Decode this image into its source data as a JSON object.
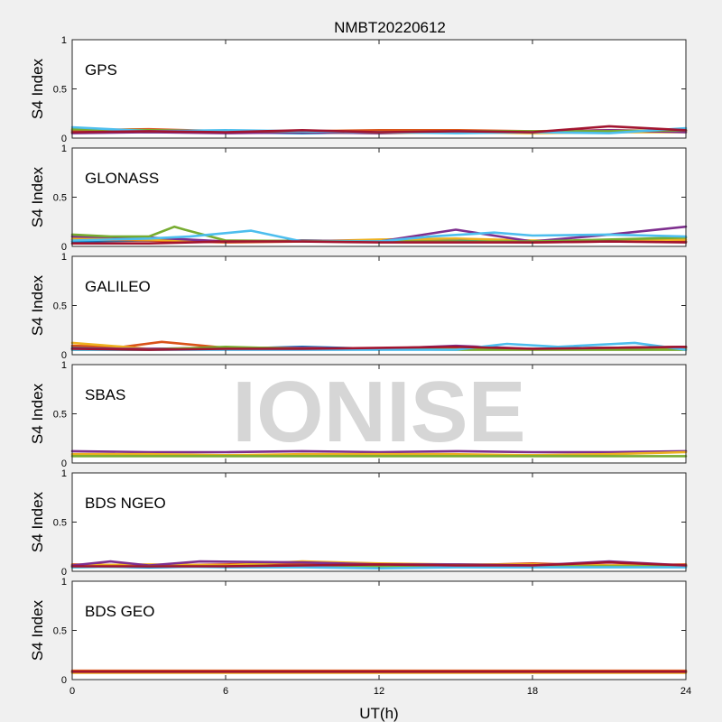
{
  "chart_data": {
    "type": "line",
    "title": "NMBT20220612",
    "xlabel": "UT(h)",
    "ylabel": "S4 Index",
    "xlim": [
      0,
      24
    ],
    "ylim": [
      0,
      1
    ],
    "xticks": [
      0,
      6,
      12,
      18,
      24
    ],
    "xtick_labels": [
      "0",
      "6",
      "12",
      "18",
      "24"
    ],
    "yticks": [
      0,
      0.5,
      1
    ],
    "ytick_labels": [
      "0",
      "0.5",
      "1"
    ],
    "watermark": "IONISE",
    "series_colors": [
      "#0072bd",
      "#d95319",
      "#edb120",
      "#7e2f8e",
      "#77ac30",
      "#4dbeee",
      "#a2142f"
    ],
    "panels": [
      {
        "label": "GPS",
        "series": [
          {
            "color": "#0072bd",
            "x": [
              0,
              3,
              6,
              9,
              12,
              15,
              18,
              21,
              24
            ],
            "y": [
              0.07,
              0.06,
              0.06,
              0.05,
              0.06,
              0.06,
              0.06,
              0.06,
              0.08
            ]
          },
          {
            "color": "#d95319",
            "x": [
              0,
              3,
              6,
              9,
              12,
              15,
              18,
              21,
              24
            ],
            "y": [
              0.08,
              0.09,
              0.07,
              0.07,
              0.08,
              0.08,
              0.07,
              0.08,
              0.07
            ]
          },
          {
            "color": "#edb120",
            "x": [
              0,
              3,
              6,
              9,
              12,
              15,
              18,
              21,
              24
            ],
            "y": [
              0.06,
              0.07,
              0.06,
              0.06,
              0.05,
              0.06,
              0.05,
              0.06,
              0.06
            ]
          },
          {
            "color": "#7e2f8e",
            "x": [
              0,
              3,
              6,
              9,
              12,
              15,
              18,
              21,
              24
            ],
            "y": [
              0.05,
              0.06,
              0.05,
              0.06,
              0.05,
              0.07,
              0.06,
              0.08,
              0.06
            ]
          },
          {
            "color": "#77ac30",
            "x": [
              0,
              3,
              6,
              9,
              12,
              15,
              18,
              21,
              24
            ],
            "y": [
              0.09,
              0.08,
              0.07,
              0.07,
              0.06,
              0.07,
              0.07,
              0.07,
              0.08
            ]
          },
          {
            "color": "#4dbeee",
            "x": [
              0,
              3,
              6,
              9,
              12,
              15,
              18,
              21,
              24
            ],
            "y": [
              0.11,
              0.07,
              0.08,
              0.07,
              0.06,
              0.05,
              0.06,
              0.05,
              0.1
            ]
          },
          {
            "color": "#a2142f",
            "x": [
              0,
              3,
              6,
              9,
              12,
              15,
              18,
              21,
              24
            ],
            "y": [
              0.06,
              0.07,
              0.06,
              0.08,
              0.06,
              0.07,
              0.06,
              0.12,
              0.08
            ]
          }
        ]
      },
      {
        "label": "GLONASS",
        "series": [
          {
            "color": "#0072bd",
            "x": [
              0,
              3,
              6,
              9,
              12,
              15,
              18,
              21,
              24
            ],
            "y": [
              0.05,
              0.06,
              0.05,
              0.06,
              0.05,
              0.06,
              0.05,
              0.06,
              0.05
            ]
          },
          {
            "color": "#d95319",
            "x": [
              0,
              3,
              6,
              9,
              12,
              15,
              18,
              21,
              24
            ],
            "y": [
              0.07,
              0.06,
              0.04,
              0.05,
              0.06,
              0.05,
              0.04,
              0.05,
              0.05
            ]
          },
          {
            "color": "#edb120",
            "x": [
              0,
              3,
              6,
              9,
              12,
              15,
              18,
              21,
              24
            ],
            "y": [
              0.08,
              0.07,
              0.05,
              0.05,
              0.07,
              0.08,
              0.06,
              0.06,
              0.07
            ]
          },
          {
            "color": "#7e2f8e",
            "x": [
              0,
              3,
              6,
              9,
              12,
              15,
              18,
              21,
              24
            ],
            "y": [
              0.1,
              0.09,
              0.05,
              0.06,
              0.05,
              0.17,
              0.05,
              0.12,
              0.2
            ]
          },
          {
            "color": "#77ac30",
            "x": [
              0,
              1.5,
              3,
              4,
              4.4,
              6,
              12,
              18,
              24
            ],
            "y": [
              0.12,
              0.1,
              0.1,
              0.2,
              0.17,
              0.06,
              0.05,
              0.05,
              0.09
            ]
          },
          {
            "color": "#4dbeee",
            "x": [
              0,
              3,
              4.6,
              7,
              9,
              12,
              14,
              16.5,
              18,
              21,
              24
            ],
            "y": [
              0.06,
              0.08,
              0.1,
              0.16,
              0.05,
              0.05,
              0.1,
              0.14,
              0.11,
              0.12,
              0.1
            ]
          },
          {
            "color": "#a2142f",
            "x": [
              0,
              3,
              6,
              9,
              12,
              15,
              18,
              21,
              24
            ],
            "y": [
              0.03,
              0.03,
              0.05,
              0.05,
              0.04,
              0.04,
              0.04,
              0.05,
              0.04
            ]
          }
        ]
      },
      {
        "label": "GALILEO",
        "series": [
          {
            "color": "#0072bd",
            "x": [
              0,
              3,
              6,
              9,
              12,
              15,
              18,
              21,
              24
            ],
            "y": [
              0.07,
              0.06,
              0.06,
              0.08,
              0.06,
              0.07,
              0.06,
              0.07,
              0.07
            ]
          },
          {
            "color": "#d95319",
            "x": [
              0,
              2,
              3.5,
              6,
              9,
              12,
              15,
              18,
              21,
              24
            ],
            "y": [
              0.09,
              0.08,
              0.13,
              0.07,
              0.07,
              0.06,
              0.07,
              0.06,
              0.07,
              0.08
            ]
          },
          {
            "color": "#edb120",
            "x": [
              0,
              3,
              6,
              9,
              12,
              15,
              18,
              21,
              24
            ],
            "y": [
              0.12,
              0.06,
              0.07,
              0.07,
              0.06,
              0.06,
              0.06,
              0.06,
              0.06
            ]
          },
          {
            "color": "#7e2f8e",
            "x": [
              0,
              3,
              6,
              9,
              12,
              15,
              18,
              21,
              24
            ],
            "y": [
              0.06,
              0.06,
              0.07,
              0.07,
              0.06,
              0.09,
              0.06,
              0.07,
              0.08
            ]
          },
          {
            "color": "#77ac30",
            "x": [
              0,
              3,
              6,
              9,
              12,
              15,
              18,
              21,
              24
            ],
            "y": [
              0.05,
              0.05,
              0.08,
              0.06,
              0.06,
              0.05,
              0.05,
              0.05,
              0.05
            ]
          },
          {
            "color": "#4dbeee",
            "x": [
              0,
              3,
              6,
              9,
              12,
              15,
              17,
              19,
              22,
              24
            ],
            "y": [
              0.05,
              0.05,
              0.05,
              0.05,
              0.05,
              0.05,
              0.11,
              0.08,
              0.12,
              0.05
            ]
          },
          {
            "color": "#a2142f",
            "x": [
              0,
              3,
              6,
              9,
              12,
              15,
              18,
              21,
              24
            ],
            "y": [
              0.06,
              0.05,
              0.06,
              0.06,
              0.07,
              0.08,
              0.06,
              0.07,
              0.08
            ]
          }
        ]
      },
      {
        "label": "SBAS",
        "series": [
          {
            "color": "#7e2f8e",
            "x": [
              0,
              3,
              6,
              9,
              12,
              15,
              18,
              21,
              24
            ],
            "y": [
              0.12,
              0.11,
              0.11,
              0.12,
              0.11,
              0.12,
              0.11,
              0.11,
              0.12
            ]
          },
          {
            "color": "#edb120",
            "x": [
              0,
              3,
              6,
              9,
              12,
              15,
              18,
              21,
              24
            ],
            "y": [
              0.09,
              0.09,
              0.08,
              0.09,
              0.09,
              0.09,
              0.08,
              0.09,
              0.11
            ]
          },
          {
            "color": "#77ac30",
            "x": [
              0,
              3,
              6,
              9,
              12,
              15,
              18,
              21,
              24
            ],
            "y": [
              0.07,
              0.07,
              0.07,
              0.07,
              0.07,
              0.07,
              0.07,
              0.07,
              0.07
            ]
          }
        ]
      },
      {
        "label": "BDS NGEO",
        "series": [
          {
            "color": "#0072bd",
            "x": [
              0,
              3,
              6,
              9,
              12,
              15,
              18,
              21,
              24
            ],
            "y": [
              0.05,
              0.04,
              0.05,
              0.06,
              0.05,
              0.05,
              0.05,
              0.05,
              0.05
            ]
          },
          {
            "color": "#d95319",
            "x": [
              0,
              3,
              6,
              9,
              12,
              15,
              18,
              21,
              24
            ],
            "y": [
              0.07,
              0.06,
              0.07,
              0.08,
              0.07,
              0.06,
              0.08,
              0.06,
              0.07
            ]
          },
          {
            "color": "#edb120",
            "x": [
              0,
              3,
              6,
              9,
              12,
              15,
              18,
              21,
              24
            ],
            "y": [
              0.06,
              0.07,
              0.06,
              0.1,
              0.08,
              0.07,
              0.07,
              0.06,
              0.06
            ]
          },
          {
            "color": "#7e2f8e",
            "x": [
              0,
              1.5,
              3,
              5,
              9,
              12,
              15,
              18,
              21,
              24
            ],
            "y": [
              0.06,
              0.1,
              0.06,
              0.1,
              0.09,
              0.07,
              0.07,
              0.06,
              0.1,
              0.06
            ]
          },
          {
            "color": "#77ac30",
            "x": [
              0,
              3,
              6,
              9,
              12,
              15,
              18,
              21,
              24
            ],
            "y": [
              0.04,
              0.05,
              0.05,
              0.06,
              0.05,
              0.06,
              0.05,
              0.05,
              0.05
            ]
          },
          {
            "color": "#4dbeee",
            "x": [
              0,
              3,
              6,
              9,
              12,
              15,
              18,
              21,
              24
            ],
            "y": [
              0.04,
              0.05,
              0.04,
              0.04,
              0.03,
              0.04,
              0.04,
              0.04,
              0.04
            ]
          },
          {
            "color": "#a2142f",
            "x": [
              0,
              3,
              6,
              9,
              12,
              15,
              18,
              21,
              24
            ],
            "y": [
              0.05,
              0.05,
              0.05,
              0.06,
              0.07,
              0.06,
              0.06,
              0.09,
              0.06
            ]
          }
        ]
      },
      {
        "label": "BDS GEO",
        "series": [
          {
            "color": "#d95319",
            "x": [
              0,
              3,
              6,
              9,
              12,
              15,
              18,
              21,
              24
            ],
            "y": [
              0.09,
              0.09,
              0.09,
              0.09,
              0.09,
              0.09,
              0.09,
              0.09,
              0.09
            ]
          },
          {
            "color": "#edb120",
            "x": [
              0,
              3,
              6,
              9,
              12,
              15,
              18,
              21,
              24
            ],
            "y": [
              0.07,
              0.07,
              0.07,
              0.07,
              0.07,
              0.07,
              0.07,
              0.07,
              0.07
            ]
          },
          {
            "color": "#a2142f",
            "x": [
              0,
              3,
              6,
              9,
              12,
              15,
              18,
              21,
              24
            ],
            "y": [
              0.08,
              0.08,
              0.08,
              0.08,
              0.08,
              0.08,
              0.08,
              0.08,
              0.08
            ]
          }
        ]
      }
    ]
  }
}
